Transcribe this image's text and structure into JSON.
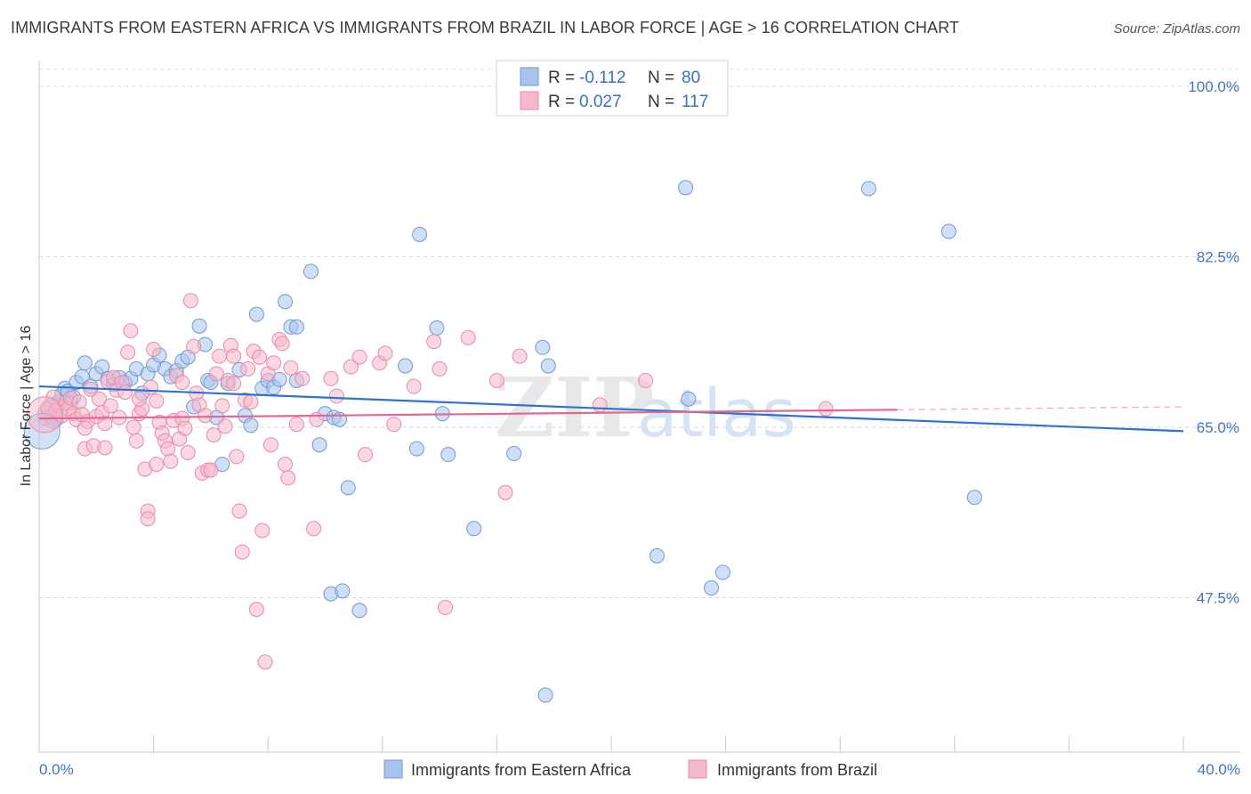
{
  "title": "IMMIGRANTS FROM EASTERN AFRICA VS IMMIGRANTS FROM BRAZIL IN LABOR FORCE | AGE > 16 CORRELATION CHART",
  "source": "Source: ZipAtlas.com",
  "watermark": {
    "zip": "ZIP",
    "atlas": "atlas"
  },
  "legend": {
    "row1": {
      "r_label": "R = ",
      "r_value": "-0.112",
      "n_label": "N = ",
      "n_value": "80"
    },
    "row2": {
      "r_label": "R = ",
      "r_value": "0.027",
      "n_label": "N = ",
      "n_value": "117"
    }
  },
  "colors": {
    "blue_fill": "#a9c4ec",
    "blue_stroke": "#6d9ad6",
    "blue_line": "#2e72d2",
    "pink_fill": "#f6b8cb",
    "pink_stroke": "#e98aa8",
    "pink_line": "#e5678f",
    "grid": "#d9d9d9",
    "axis": "#c8c8c8",
    "tick_text": "#4472c4"
  },
  "chart_data": {
    "type": "scatter",
    "xlabel": "",
    "ylabel": "In Labor Force | Age > 16",
    "xlim": [
      0,
      40
    ],
    "ylim": [
      30,
      100
    ],
    "x_tick_labels": [
      {
        "value": 0,
        "label": "0.0%"
      },
      {
        "value": 40,
        "label": "40.0%"
      }
    ],
    "y_tick_labels": [
      {
        "value": 100,
        "label": "100.0%"
      },
      {
        "value": 82.5,
        "label": "82.5%"
      },
      {
        "value": 65,
        "label": "65.0%"
      },
      {
        "value": 47.5,
        "label": "47.5%"
      }
    ],
    "grid": true,
    "legend_placement": "top-center",
    "series": [
      {
        "name": "Immigrants from Eastern Africa",
        "color": "#a9c4ec",
        "trend": {
          "x0": 0,
          "y0": 69.2,
          "x1": 40,
          "y1": 64.6
        },
        "points": [
          [
            0.3,
            66.8
          ],
          [
            0.4,
            67.3
          ],
          [
            0.5,
            66.2
          ],
          [
            0.6,
            65.8
          ],
          [
            0.7,
            67.6
          ],
          [
            0.8,
            68.4
          ],
          [
            0.9,
            69.0
          ],
          [
            1.0,
            68.7
          ],
          [
            1.1,
            67.5
          ],
          [
            1.3,
            69.6
          ],
          [
            1.5,
            70.2
          ],
          [
            1.6,
            71.6
          ],
          [
            1.8,
            69.2
          ],
          [
            2.0,
            70.5
          ],
          [
            2.2,
            71.2
          ],
          [
            2.4,
            70.0
          ],
          [
            2.6,
            69.4
          ],
          [
            2.8,
            70.1
          ],
          [
            3.0,
            69.6
          ],
          [
            3.2,
            70.0
          ],
          [
            3.4,
            71.0
          ],
          [
            3.6,
            68.5
          ],
          [
            3.8,
            70.5
          ],
          [
            4.0,
            71.4
          ],
          [
            4.2,
            72.4
          ],
          [
            4.4,
            71.0
          ],
          [
            4.6,
            70.2
          ],
          [
            4.8,
            70.8
          ],
          [
            5.0,
            71.8
          ],
          [
            5.2,
            72.2
          ],
          [
            5.4,
            67.1
          ],
          [
            5.6,
            75.4
          ],
          [
            5.8,
            73.5
          ],
          [
            5.9,
            69.8
          ],
          [
            6.0,
            69.6
          ],
          [
            6.2,
            66.0
          ],
          [
            6.4,
            61.2
          ],
          [
            6.6,
            69.5
          ],
          [
            7.0,
            70.9
          ],
          [
            7.2,
            66.2
          ],
          [
            7.4,
            65.2
          ],
          [
            7.6,
            76.6
          ],
          [
            7.8,
            69.0
          ],
          [
            8.0,
            69.8
          ],
          [
            8.2,
            69.1
          ],
          [
            8.4,
            69.9
          ],
          [
            8.6,
            77.9
          ],
          [
            8.8,
            75.3
          ],
          [
            9.0,
            75.3
          ],
          [
            9.5,
            81.0
          ],
          [
            9.8,
            63.2
          ],
          [
            10.0,
            66.4
          ],
          [
            10.3,
            66.0
          ],
          [
            10.5,
            65.8
          ],
          [
            10.2,
            47.9
          ],
          [
            10.6,
            48.2
          ],
          [
            10.8,
            58.8
          ],
          [
            11.2,
            46.2
          ],
          [
            12.8,
            71.3
          ],
          [
            13.2,
            62.8
          ],
          [
            13.3,
            84.8
          ],
          [
            13.9,
            75.2
          ],
          [
            14.1,
            66.4
          ],
          [
            14.3,
            62.2
          ],
          [
            15.2,
            54.6
          ],
          [
            16.6,
            62.3
          ],
          [
            17.6,
            73.2
          ],
          [
            17.8,
            71.3
          ],
          [
            17.7,
            37.5
          ],
          [
            21.6,
            51.8
          ],
          [
            22.6,
            89.6
          ],
          [
            22.7,
            67.9
          ],
          [
            23.5,
            48.5
          ],
          [
            23.9,
            50.1
          ],
          [
            29.0,
            89.5
          ],
          [
            31.8,
            85.1
          ],
          [
            32.7,
            57.8
          ],
          [
            0.2,
            65.9
          ],
          [
            1.2,
            68.1
          ],
          [
            9.0,
            69.8
          ]
        ]
      },
      {
        "name": "Immigrants from Brazil",
        "color": "#f6b8cb",
        "trend": {
          "x0": 0,
          "y0": 65.9,
          "x1": 30,
          "y1": 66.8
        },
        "points": [
          [
            0.2,
            66.5
          ],
          [
            0.3,
            67.0
          ],
          [
            0.4,
            66.1
          ],
          [
            0.5,
            65.6
          ],
          [
            0.6,
            66.8
          ],
          [
            0.7,
            67.2
          ],
          [
            0.8,
            66.2
          ],
          [
            0.9,
            67.5
          ],
          [
            1.0,
            66.9
          ],
          [
            1.1,
            68.0
          ],
          [
            1.2,
            66.4
          ],
          [
            1.3,
            65.8
          ],
          [
            1.4,
            67.6
          ],
          [
            1.5,
            66.3
          ],
          [
            1.6,
            62.8
          ],
          [
            1.7,
            65.6
          ],
          [
            1.8,
            68.9
          ],
          [
            1.9,
            63.1
          ],
          [
            2.0,
            66.1
          ],
          [
            2.1,
            67.9
          ],
          [
            2.2,
            66.5
          ],
          [
            2.3,
            65.4
          ],
          [
            2.4,
            69.7
          ],
          [
            2.5,
            67.2
          ],
          [
            2.6,
            70.1
          ],
          [
            2.7,
            68.8
          ],
          [
            2.8,
            66.0
          ],
          [
            2.9,
            69.6
          ],
          [
            3.0,
            68.6
          ],
          [
            3.1,
            72.7
          ],
          [
            3.2,
            74.9
          ],
          [
            3.3,
            65.0
          ],
          [
            3.4,
            63.6
          ],
          [
            3.5,
            66.4
          ],
          [
            3.6,
            66.9
          ],
          [
            3.7,
            60.7
          ],
          [
            3.8,
            56.4
          ],
          [
            3.8,
            55.6
          ],
          [
            3.9,
            69.1
          ],
          [
            4.0,
            73.0
          ],
          [
            4.1,
            67.7
          ],
          [
            4.2,
            65.5
          ],
          [
            4.3,
            64.4
          ],
          [
            4.4,
            63.6
          ],
          [
            4.5,
            62.8
          ],
          [
            4.6,
            61.5
          ],
          [
            4.7,
            65.7
          ],
          [
            4.8,
            70.3
          ],
          [
            4.9,
            63.8
          ],
          [
            5.0,
            65.9
          ],
          [
            5.0,
            69.6
          ],
          [
            5.2,
            62.4
          ],
          [
            5.3,
            78.0
          ],
          [
            5.4,
            73.3
          ],
          [
            5.5,
            68.5
          ],
          [
            5.6,
            67.3
          ],
          [
            5.7,
            60.3
          ],
          [
            5.8,
            66.2
          ],
          [
            5.9,
            60.6
          ],
          [
            6.0,
            60.6
          ],
          [
            6.1,
            64.2
          ],
          [
            6.2,
            70.5
          ],
          [
            6.3,
            72.3
          ],
          [
            6.4,
            67.2
          ],
          [
            6.5,
            65.1
          ],
          [
            6.6,
            69.8
          ],
          [
            6.7,
            73.4
          ],
          [
            6.8,
            72.3
          ],
          [
            6.9,
            62.0
          ],
          [
            7.0,
            56.4
          ],
          [
            7.1,
            52.2
          ],
          [
            7.2,
            67.8
          ],
          [
            7.3,
            71.0
          ],
          [
            7.4,
            67.6
          ],
          [
            7.5,
            72.8
          ],
          [
            7.6,
            46.3
          ],
          [
            7.7,
            72.2
          ],
          [
            7.8,
            54.4
          ],
          [
            7.9,
            40.9
          ],
          [
            8.0,
            70.5
          ],
          [
            8.1,
            63.2
          ],
          [
            8.2,
            71.6
          ],
          [
            8.4,
            74.0
          ],
          [
            8.5,
            73.6
          ],
          [
            8.6,
            61.2
          ],
          [
            8.7,
            59.8
          ],
          [
            8.8,
            71.1
          ],
          [
            9.0,
            65.3
          ],
          [
            9.2,
            70.0
          ],
          [
            9.6,
            54.6
          ],
          [
            9.7,
            65.8
          ],
          [
            10.2,
            70.0
          ],
          [
            10.4,
            68.2
          ],
          [
            10.9,
            71.2
          ],
          [
            11.2,
            72.2
          ],
          [
            11.4,
            62.2
          ],
          [
            11.9,
            71.6
          ],
          [
            12.1,
            72.6
          ],
          [
            12.4,
            65.3
          ],
          [
            13.1,
            69.2
          ],
          [
            13.8,
            73.8
          ],
          [
            14.0,
            71.0
          ],
          [
            14.2,
            46.5
          ],
          [
            15.0,
            74.2
          ],
          [
            16.0,
            69.8
          ],
          [
            16.3,
            58.3
          ],
          [
            16.8,
            72.3
          ],
          [
            19.6,
            67.3
          ],
          [
            21.2,
            69.8
          ],
          [
            27.5,
            66.9
          ],
          [
            0.5,
            68.1
          ],
          [
            1.6,
            64.9
          ],
          [
            2.3,
            62.9
          ],
          [
            3.5,
            67.9
          ],
          [
            4.1,
            61.2
          ],
          [
            5.1,
            64.9
          ],
          [
            6.8,
            69.5
          ]
        ]
      }
    ],
    "big_points": [
      {
        "series": 0,
        "x": 0.1,
        "y": 64.6
      },
      {
        "series": 1,
        "x": 0.2,
        "y": 66.3
      }
    ]
  }
}
